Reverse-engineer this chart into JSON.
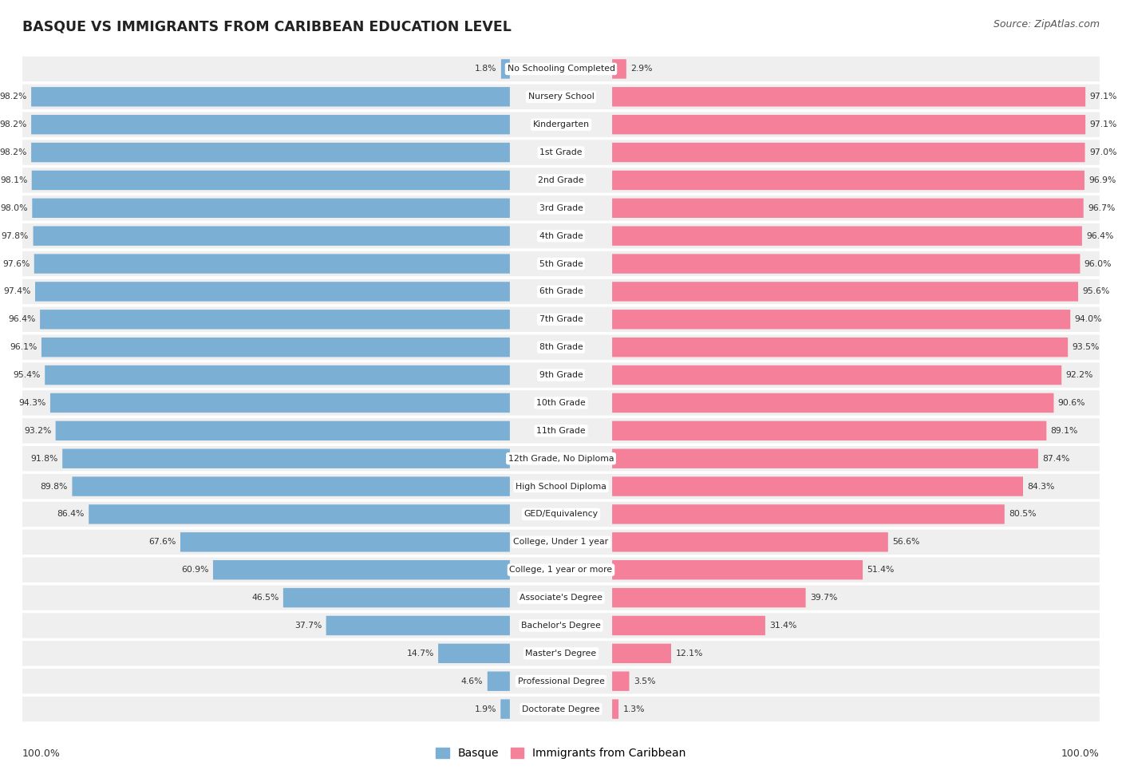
{
  "title": "BASQUE VS IMMIGRANTS FROM CARIBBEAN EDUCATION LEVEL",
  "source": "Source: ZipAtlas.com",
  "categories": [
    "No Schooling Completed",
    "Nursery School",
    "Kindergarten",
    "1st Grade",
    "2nd Grade",
    "3rd Grade",
    "4th Grade",
    "5th Grade",
    "6th Grade",
    "7th Grade",
    "8th Grade",
    "9th Grade",
    "10th Grade",
    "11th Grade",
    "12th Grade, No Diploma",
    "High School Diploma",
    "GED/Equivalency",
    "College, Under 1 year",
    "College, 1 year or more",
    "Associate's Degree",
    "Bachelor's Degree",
    "Master's Degree",
    "Professional Degree",
    "Doctorate Degree"
  ],
  "basque": [
    1.8,
    98.2,
    98.2,
    98.2,
    98.1,
    98.0,
    97.8,
    97.6,
    97.4,
    96.4,
    96.1,
    95.4,
    94.3,
    93.2,
    91.8,
    89.8,
    86.4,
    67.6,
    60.9,
    46.5,
    37.7,
    14.7,
    4.6,
    1.9
  ],
  "caribbean": [
    2.9,
    97.1,
    97.1,
    97.0,
    96.9,
    96.7,
    96.4,
    96.0,
    95.6,
    94.0,
    93.5,
    92.2,
    90.6,
    89.1,
    87.4,
    84.3,
    80.5,
    56.6,
    51.4,
    39.7,
    31.4,
    12.1,
    3.5,
    1.3
  ],
  "basque_color": "#7bafd4",
  "caribbean_color": "#f48099",
  "row_bg_color": "#efefef",
  "legend_basque": "Basque",
  "legend_caribbean": "Immigrants from Caribbean",
  "axis_label_left": "100.0%",
  "axis_label_right": "100.0%",
  "max_bar_width": 100.0,
  "label_zone_half": 9.5
}
